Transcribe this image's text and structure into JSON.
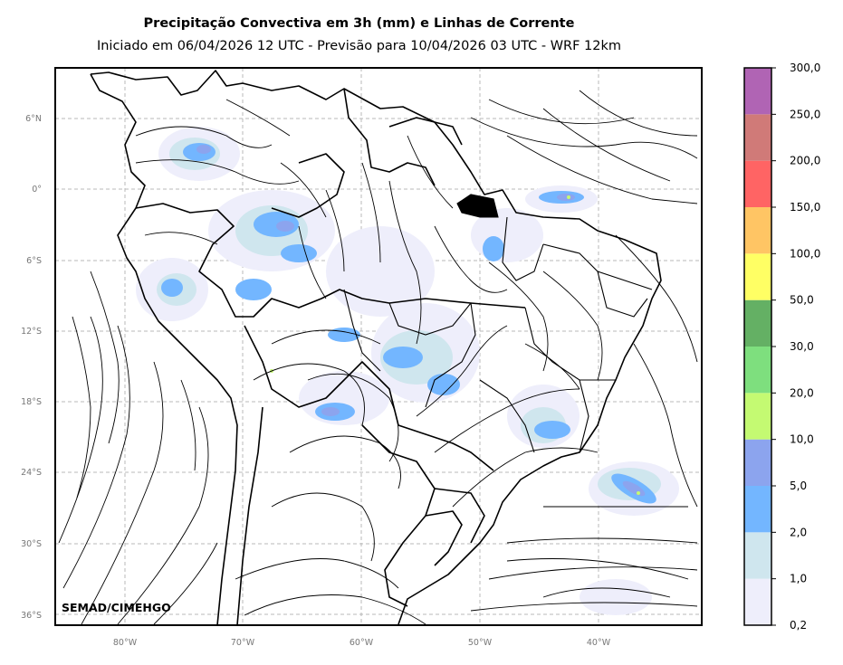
{
  "title": "Precipitação Convectiva em 3h (mm) e Linhas de Corrente",
  "subtitle": "Iniciado em 06/04/2026 12 UTC - Previsão para 10/04/2026 03 UTC - WRF 12km",
  "credit": "SEMAD/CIMEHGO",
  "lat_labels": [
    "6°N",
    "0°",
    "6°S",
    "12°S",
    "18°S",
    "24°S",
    "30°S",
    "36°S"
  ],
  "lon_labels": [
    "80°W",
    "70°W",
    "60°W",
    "50°W",
    "40°W"
  ],
  "colorbar": {
    "labels": [
      "0,2",
      "1,0",
      "2,0",
      "5,0",
      "10,0",
      "20,0",
      "30,0",
      "50,0",
      "100,0",
      "150,0",
      "200,0",
      "250,0",
      "300,0"
    ],
    "colors": [
      "#eeeefb",
      "#cfe6ee",
      "#73b6ff",
      "#8ca4ee",
      "#c4fa72",
      "#7edf7e",
      "#64b064",
      "#ffff64",
      "#ffc564",
      "#ff6464",
      "#d07a78",
      "#b064b4"
    ]
  }
}
